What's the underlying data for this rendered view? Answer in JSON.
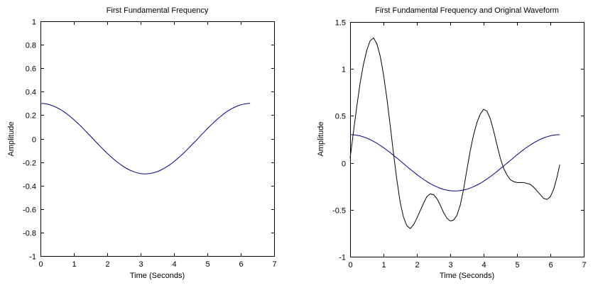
{
  "figure": {
    "background": "#ffffff",
    "axes_color": "#000000"
  },
  "chart_data": [
    {
      "type": "line",
      "title": "First Fundamental Frequency",
      "xlabel": "Time (Seconds)",
      "ylabel": "Amplitude",
      "xlim": [
        0,
        7
      ],
      "ylim": [
        -1,
        1
      ],
      "xticks": [
        0,
        1,
        2,
        3,
        4,
        5,
        6,
        7
      ],
      "yticks": [
        -1,
        -0.8,
        -0.6,
        -0.4,
        -0.2,
        0,
        0.2,
        0.4,
        0.6,
        0.8,
        1
      ],
      "grid": false,
      "legend": "none",
      "series": [
        {
          "name": "first-fundamental",
          "color": "#00008B",
          "x": [
            0,
            0.1,
            0.2,
            0.3,
            0.4,
            0.5,
            0.6,
            0.7,
            0.8,
            0.9,
            1.0,
            1.1,
            1.2,
            1.3,
            1.4,
            1.5,
            1.6,
            1.7,
            1.8,
            1.9,
            2.0,
            2.1,
            2.2,
            2.3,
            2.4,
            2.5,
            2.6,
            2.7,
            2.8,
            2.9,
            3.0,
            3.1,
            3.2,
            3.3,
            3.4,
            3.5,
            3.6,
            3.7,
            3.8,
            3.9,
            4.0,
            4.1,
            4.2,
            4.3,
            4.4,
            4.5,
            4.6,
            4.7,
            4.8,
            4.9,
            5.0,
            5.1,
            5.2,
            5.3,
            5.4,
            5.5,
            5.6,
            5.7,
            5.8,
            5.9,
            6.0,
            6.1,
            6.2,
            6.28
          ],
          "y": [
            0.3,
            0.299,
            0.294,
            0.287,
            0.276,
            0.263,
            0.248,
            0.229,
            0.209,
            0.186,
            0.162,
            0.136,
            0.109,
            0.08,
            0.051,
            0.021,
            -0.009,
            -0.039,
            -0.068,
            -0.097,
            -0.125,
            -0.151,
            -0.177,
            -0.2,
            -0.221,
            -0.24,
            -0.257,
            -0.271,
            -0.283,
            -0.291,
            -0.297,
            -0.3,
            -0.299,
            -0.296,
            -0.29,
            -0.281,
            -0.269,
            -0.254,
            -0.237,
            -0.218,
            -0.196,
            -0.172,
            -0.147,
            -0.12,
            -0.092,
            -0.063,
            -0.034,
            -0.004,
            0.026,
            0.056,
            0.085,
            0.113,
            0.141,
            0.166,
            0.19,
            0.213,
            0.233,
            0.25,
            0.266,
            0.278,
            0.288,
            0.295,
            0.299,
            0.3
          ]
        }
      ]
    },
    {
      "type": "line",
      "title": "First Fundamental Frequency and Original Waveform",
      "xlabel": "Time (Seconds)",
      "ylabel": "Amplitude",
      "xlim": [
        0,
        7
      ],
      "ylim": [
        -1,
        1.5
      ],
      "xticks": [
        0,
        1,
        2,
        3,
        4,
        5,
        6,
        7
      ],
      "yticks": [
        -1,
        -0.5,
        0,
        0.5,
        1,
        1.5
      ],
      "grid": false,
      "legend": "none",
      "series": [
        {
          "name": "original-waveform",
          "color": "#000000",
          "x": [
            0,
            0.1,
            0.2,
            0.3,
            0.4,
            0.5,
            0.6,
            0.7,
            0.8,
            0.9,
            1.0,
            1.1,
            1.2,
            1.3,
            1.4,
            1.5,
            1.6,
            1.7,
            1.8,
            1.9,
            2.0,
            2.1,
            2.2,
            2.3,
            2.4,
            2.5,
            2.6,
            2.7,
            2.8,
            2.9,
            3.0,
            3.1,
            3.2,
            3.3,
            3.4,
            3.5,
            3.6,
            3.7,
            3.8,
            3.9,
            4.0,
            4.1,
            4.2,
            4.3,
            4.4,
            4.5,
            4.6,
            4.7,
            4.8,
            4.9,
            5.0,
            5.1,
            5.2,
            5.3,
            5.4,
            5.5,
            5.6,
            5.7,
            5.8,
            5.9,
            6.0,
            6.1,
            6.2,
            6.28
          ],
          "y": [
            0.05,
            0.33,
            0.6,
            0.85,
            1.05,
            1.2,
            1.3,
            1.33,
            1.27,
            1.14,
            0.94,
            0.69,
            0.4,
            0.1,
            -0.18,
            -0.42,
            -0.58,
            -0.67,
            -0.7,
            -0.66,
            -0.59,
            -0.51,
            -0.43,
            -0.36,
            -0.33,
            -0.34,
            -0.38,
            -0.45,
            -0.53,
            -0.59,
            -0.62,
            -0.61,
            -0.56,
            -0.45,
            -0.28,
            -0.07,
            0.13,
            0.3,
            0.43,
            0.52,
            0.57,
            0.55,
            0.47,
            0.34,
            0.19,
            0.05,
            -0.06,
            -0.13,
            -0.18,
            -0.2,
            -0.21,
            -0.21,
            -0.21,
            -0.22,
            -0.23,
            -0.26,
            -0.3,
            -0.34,
            -0.38,
            -0.39,
            -0.36,
            -0.28,
            -0.15,
            -0.02
          ]
        },
        {
          "name": "first-fundamental",
          "color": "#00008B",
          "x": [
            0,
            0.1,
            0.2,
            0.3,
            0.4,
            0.5,
            0.6,
            0.7,
            0.8,
            0.9,
            1.0,
            1.1,
            1.2,
            1.3,
            1.4,
            1.5,
            1.6,
            1.7,
            1.8,
            1.9,
            2.0,
            2.1,
            2.2,
            2.3,
            2.4,
            2.5,
            2.6,
            2.7,
            2.8,
            2.9,
            3.0,
            3.1,
            3.2,
            3.3,
            3.4,
            3.5,
            3.6,
            3.7,
            3.8,
            3.9,
            4.0,
            4.1,
            4.2,
            4.3,
            4.4,
            4.5,
            4.6,
            4.7,
            4.8,
            4.9,
            5.0,
            5.1,
            5.2,
            5.3,
            5.4,
            5.5,
            5.6,
            5.7,
            5.8,
            5.9,
            6.0,
            6.1,
            6.2,
            6.28
          ],
          "y": [
            0.3,
            0.299,
            0.294,
            0.287,
            0.276,
            0.263,
            0.248,
            0.229,
            0.209,
            0.186,
            0.162,
            0.136,
            0.109,
            0.08,
            0.051,
            0.021,
            -0.009,
            -0.039,
            -0.068,
            -0.097,
            -0.125,
            -0.151,
            -0.177,
            -0.2,
            -0.221,
            -0.24,
            -0.257,
            -0.271,
            -0.283,
            -0.291,
            -0.297,
            -0.3,
            -0.299,
            -0.296,
            -0.29,
            -0.281,
            -0.269,
            -0.254,
            -0.237,
            -0.218,
            -0.196,
            -0.172,
            -0.147,
            -0.12,
            -0.092,
            -0.063,
            -0.034,
            -0.004,
            0.026,
            0.056,
            0.085,
            0.113,
            0.141,
            0.166,
            0.19,
            0.213,
            0.233,
            0.25,
            0.266,
            0.278,
            0.288,
            0.295,
            0.299,
            0.3
          ]
        }
      ]
    }
  ]
}
